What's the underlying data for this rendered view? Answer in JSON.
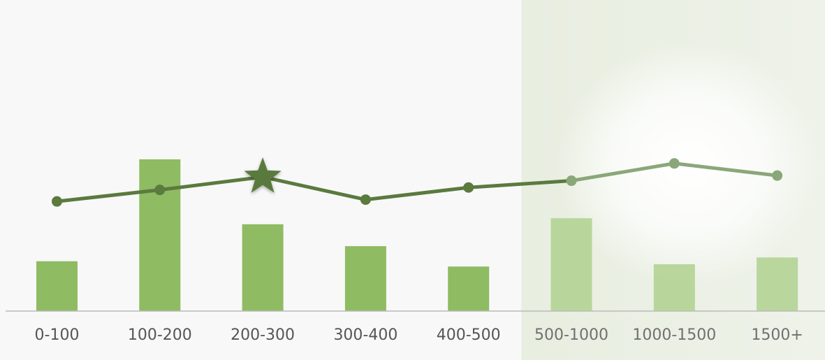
{
  "chart_data": {
    "type": "bar+line",
    "categories": [
      "0-100",
      "100-200",
      "200-300",
      "300-400",
      "400-500",
      "500-1000",
      "1000-1500",
      "1500+"
    ],
    "series": [
      {
        "type": "bar",
        "values": [
          6.6,
          20.1,
          11.5,
          8.6,
          5.9,
          12.3,
          6.2,
          7.1
        ]
      },
      {
        "type": "line",
        "values": [
          55.1,
          60.9,
          67.4,
          56.0,
          62.1,
          65.5,
          74.2,
          68.1
        ]
      }
    ],
    "ylim_bars": [
      0,
      40
    ],
    "ylim_line": [
      0,
      150
    ],
    "highlight": {
      "category": "200-300",
      "marker": "star"
    },
    "shaded_region": {
      "from": "500-1000",
      "to": "1500+"
    },
    "grid": false,
    "legend": "none",
    "colors": {
      "background": "#f8f8f8",
      "bar": "#8fbb62",
      "bar_faded": "#b3d394",
      "line": "#5a7a3e",
      "line_faded": "#8aa779",
      "shade": "#e9eee1",
      "axis": "#bbbbbb"
    }
  }
}
